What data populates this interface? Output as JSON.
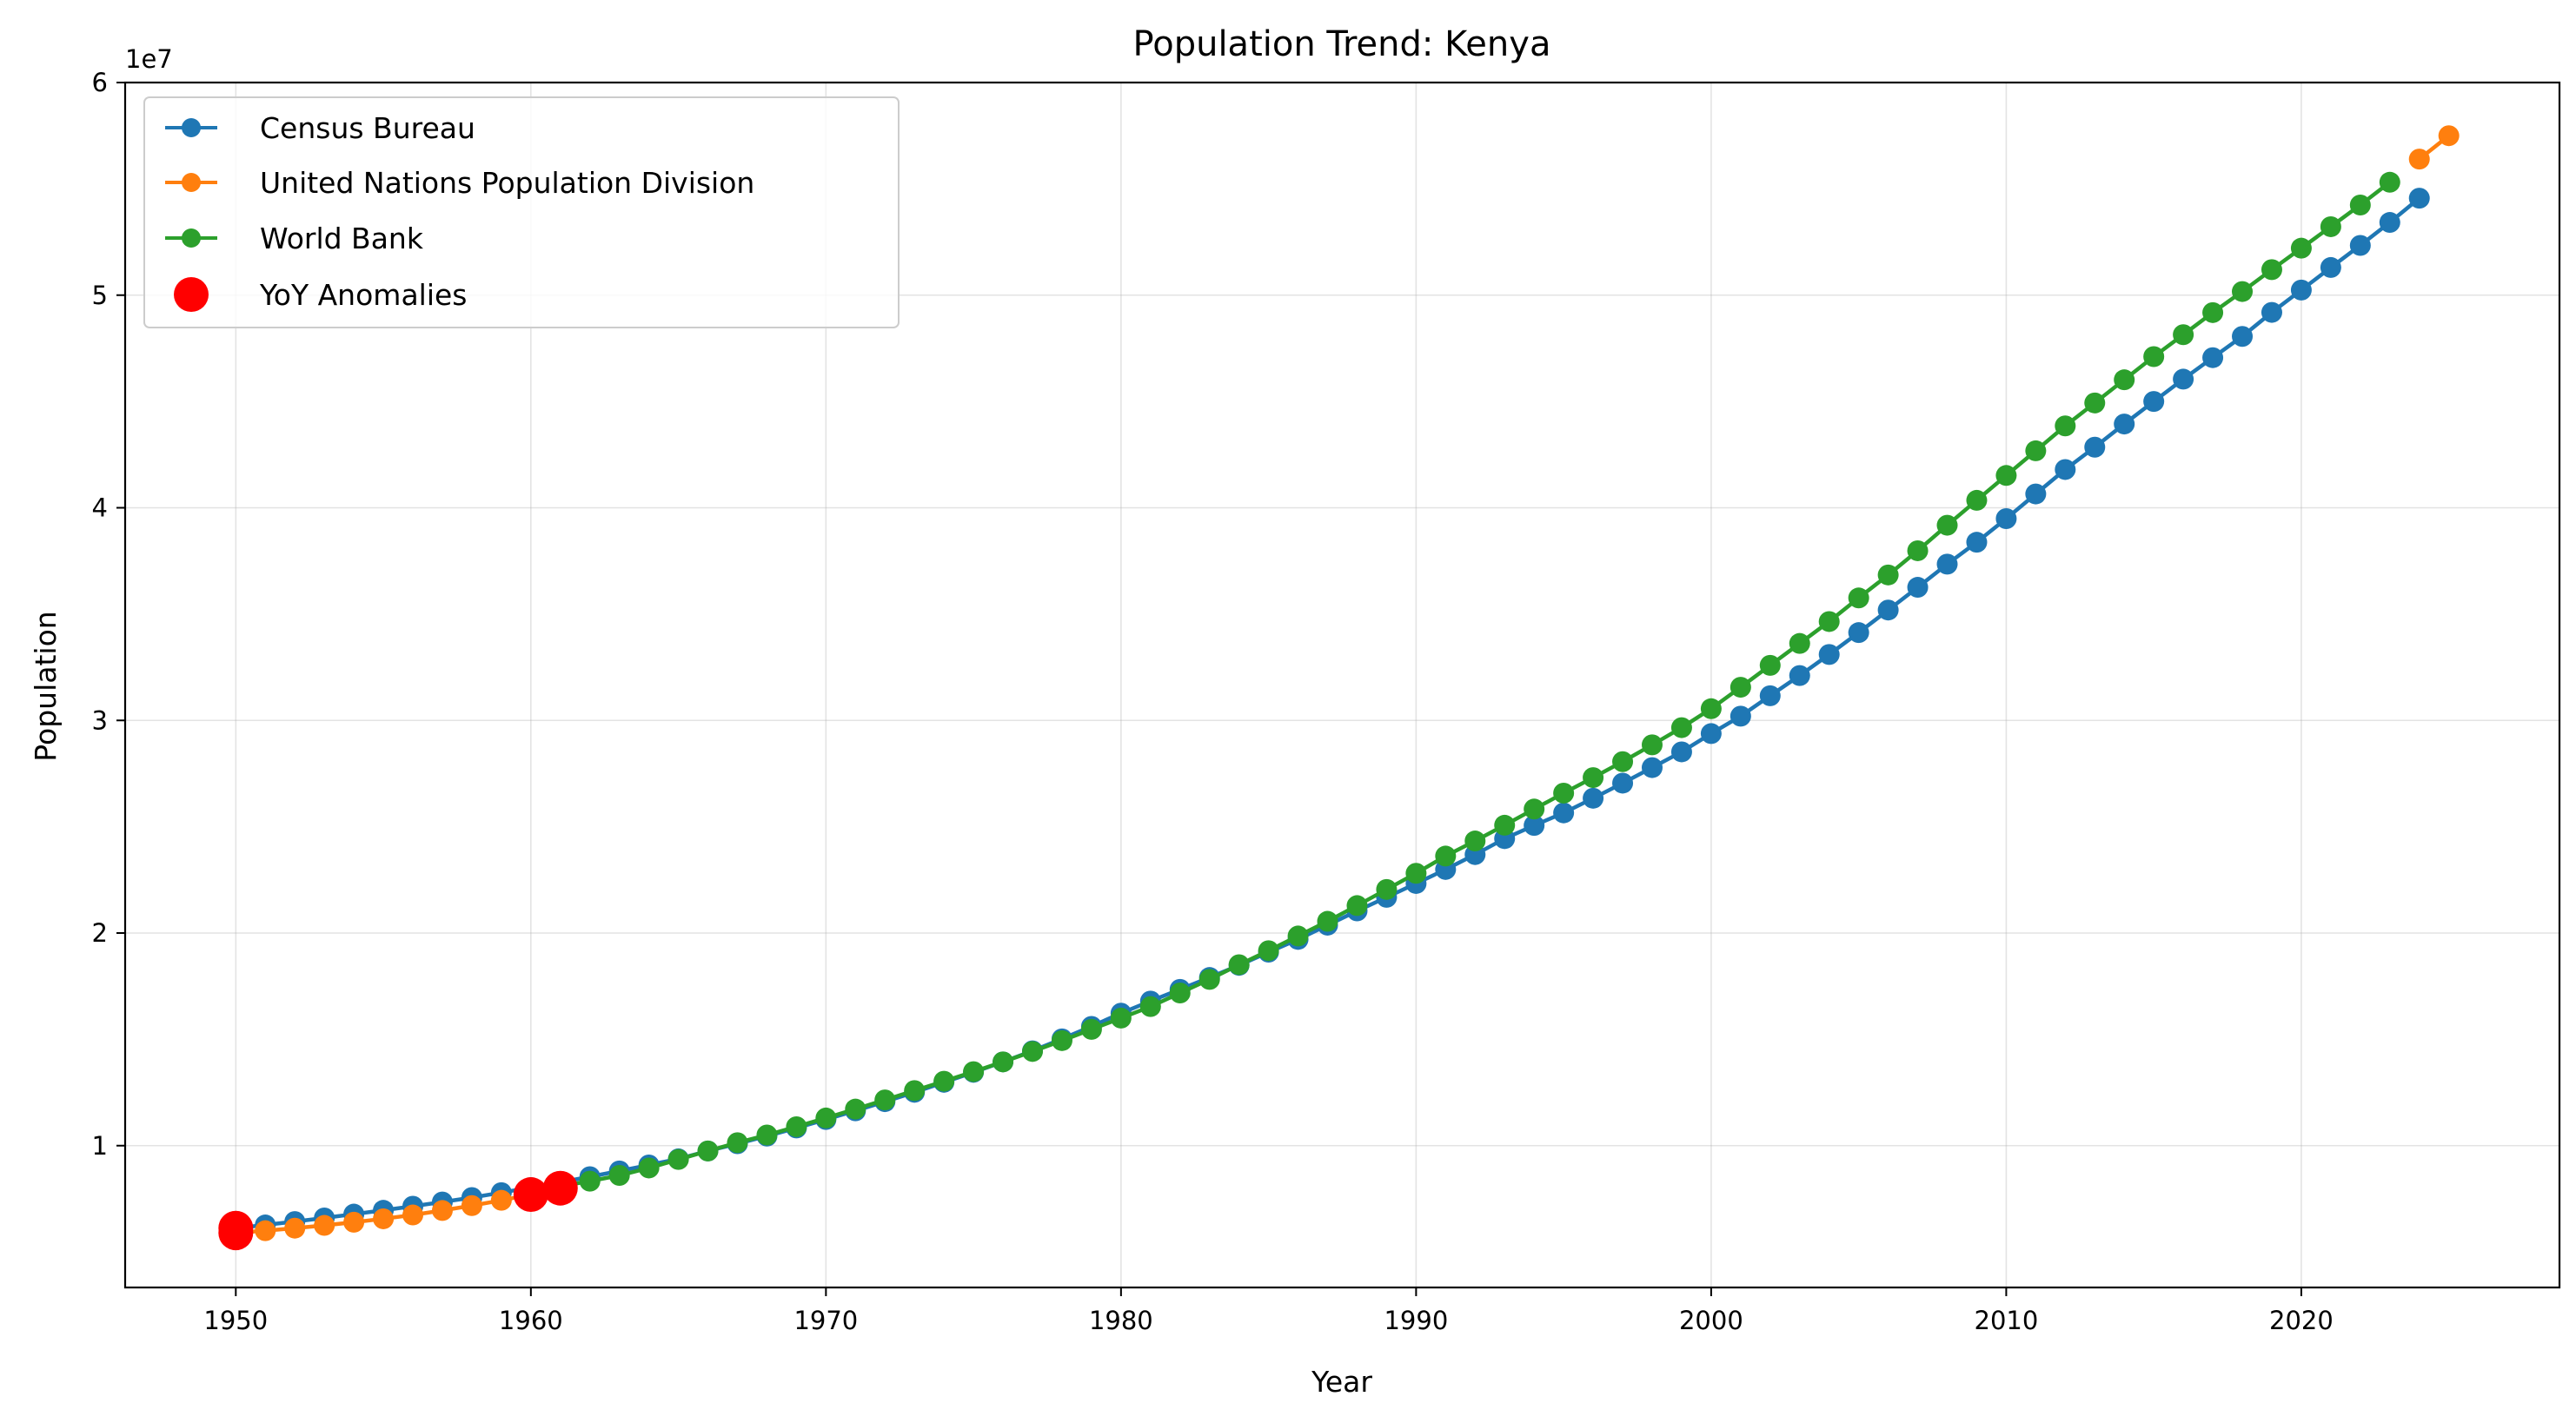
{
  "chart_data": {
    "type": "line",
    "title": "Population Trend: Kenya",
    "xlabel": "Year",
    "ylabel": "Population",
    "offset_text": "1e7",
    "xlim": [
      1946.25,
      2028.75
    ],
    "ylim": [
      3330000,
      60000000
    ],
    "x_ticks": [
      1950,
      1960,
      1970,
      1980,
      1990,
      2000,
      2010,
      2020
    ],
    "x_tick_labels": [
      "1950",
      "1960",
      "1970",
      "1980",
      "1990",
      "2000",
      "2010",
      "2020"
    ],
    "y_ticks": [
      10000000,
      20000000,
      30000000,
      40000000,
      50000000,
      60000000
    ],
    "y_tick_labels": [
      "1",
      "2",
      "3",
      "4",
      "5",
      "6"
    ],
    "grid": true,
    "legend_position": "top-left",
    "series": [
      {
        "name": "Census Bureau",
        "color": "#1f77b4",
        "x": [
          1950,
          1951,
          1952,
          1953,
          1954,
          1955,
          1956,
          1957,
          1958,
          1959,
          1960,
          1961,
          1962,
          1963,
          1964,
          1965,
          1966,
          1967,
          1968,
          1969,
          1970,
          1971,
          1972,
          1973,
          1974,
          1975,
          1976,
          1977,
          1978,
          1979,
          1980,
          1981,
          1982,
          1983,
          1984,
          1985,
          1986,
          1987,
          1988,
          1989,
          1990,
          1991,
          1992,
          1993,
          1994,
          1995,
          1996,
          1997,
          1998,
          1999,
          2000,
          2001,
          2002,
          2003,
          2004,
          2005,
          2006,
          2007,
          2008,
          2009,
          2010,
          2011,
          2012,
          2013,
          2014,
          2015,
          2016,
          2017,
          2018,
          2019,
          2020,
          2021,
          2022,
          2023,
          2024
        ],
        "y": [
          6120000,
          6270000,
          6430000,
          6600000,
          6780000,
          6960000,
          7150000,
          7350000,
          7560000,
          7790000,
          8030000,
          8280000,
          8540000,
          8810000,
          9090000,
          9380000,
          9750000,
          10090000,
          10450000,
          10830000,
          11230000,
          11640000,
          12070000,
          12510000,
          12980000,
          13450000,
          13940000,
          14460000,
          15020000,
          15610000,
          16230000,
          16800000,
          17350000,
          17910000,
          18480000,
          19100000,
          19700000,
          20370000,
          21040000,
          21680000,
          22330000,
          22990000,
          23690000,
          24440000,
          25060000,
          25650000,
          26340000,
          27050000,
          27780000,
          28520000,
          29380000,
          30200000,
          31160000,
          32110000,
          33100000,
          34130000,
          35190000,
          36260000,
          37350000,
          38380000,
          39490000,
          40650000,
          41800000,
          42850000,
          43940000,
          45000000,
          46050000,
          47060000,
          48060000,
          49190000,
          50240000,
          51300000,
          52340000,
          53420000,
          54560000
        ]
      },
      {
        "name": "United Nations Population Division",
        "color": "#ff7f0e",
        "x": [
          1950,
          1951,
          1952,
          1953,
          1954,
          1955,
          1956,
          1957,
          1958,
          1959,
          1960,
          1961,
          2024,
          2025
        ],
        "y": [
          5900000,
          6000000,
          6120000,
          6250000,
          6400000,
          6560000,
          6740000,
          6950000,
          7180000,
          7430000,
          7700000,
          8000000,
          56400000,
          57500000
        ]
      },
      {
        "name": "World Bank",
        "color": "#2ca02c",
        "x": [
          1961,
          1962,
          1963,
          1964,
          1965,
          1966,
          1967,
          1968,
          1969,
          1970,
          1971,
          1972,
          1973,
          1974,
          1975,
          1976,
          1977,
          1978,
          1979,
          1980,
          1981,
          1982,
          1983,
          1984,
          1985,
          1986,
          1987,
          1988,
          1989,
          1990,
          1991,
          1992,
          1993,
          1994,
          1995,
          1996,
          1997,
          1998,
          1999,
          2000,
          2001,
          2002,
          2003,
          2004,
          2005,
          2006,
          2007,
          2008,
          2009,
          2010,
          2011,
          2012,
          2013,
          2014,
          2015,
          2016,
          2017,
          2018,
          2019,
          2020,
          2021,
          2022,
          2023
        ],
        "y": [
          8100000,
          8330000,
          8600000,
          8950000,
          9350000,
          9750000,
          10140000,
          10500000,
          10890000,
          11300000,
          11720000,
          12150000,
          12590000,
          13030000,
          13480000,
          13940000,
          14430000,
          14940000,
          15470000,
          16000000,
          16540000,
          17180000,
          17820000,
          18510000,
          19170000,
          19860000,
          20550000,
          21290000,
          22050000,
          22810000,
          23620000,
          24330000,
          25070000,
          25830000,
          26580000,
          27310000,
          28060000,
          28850000,
          29660000,
          30550000,
          31560000,
          32590000,
          33620000,
          34650000,
          35760000,
          36840000,
          37980000,
          39180000,
          40350000,
          41520000,
          42680000,
          43850000,
          44930000,
          46020000,
          47110000,
          48140000,
          49180000,
          50170000,
          51200000,
          52210000,
          53220000,
          54240000,
          55310000
        ]
      },
      {
        "name": "YoY Anomalies",
        "color": "#ff0000",
        "type": "scatter",
        "x": [
          1950,
          1950,
          1960,
          1961
        ],
        "y": [
          6120000,
          5900000,
          7700000,
          8000000
        ]
      }
    ]
  }
}
